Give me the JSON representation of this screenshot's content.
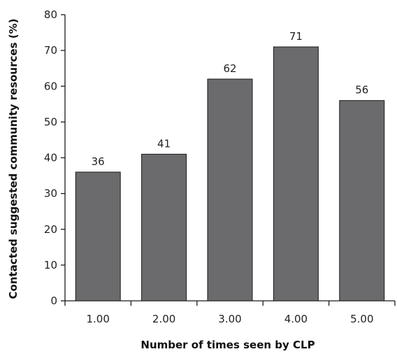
{
  "chart_data": {
    "type": "bar",
    "title": "",
    "xlabel": "Number of times seen by CLP",
    "ylabel": "Contacted suggested community resources (%)",
    "categories": [
      "1.00",
      "2.00",
      "3.00",
      "4.00",
      "5.00"
    ],
    "values": [
      36,
      41,
      62,
      71,
      56
    ],
    "data_labels": [
      "36",
      "41",
      "62",
      "71",
      "56"
    ],
    "ylim": [
      0,
      80
    ],
    "yticks": [
      0,
      10,
      20,
      30,
      40,
      50,
      60,
      70,
      80
    ],
    "grid": false,
    "legend": "none",
    "colors": {
      "bar_fill": "#6b6b6d",
      "bar_stroke": "#1a1a1a",
      "axis": "#1a1a1a"
    }
  }
}
